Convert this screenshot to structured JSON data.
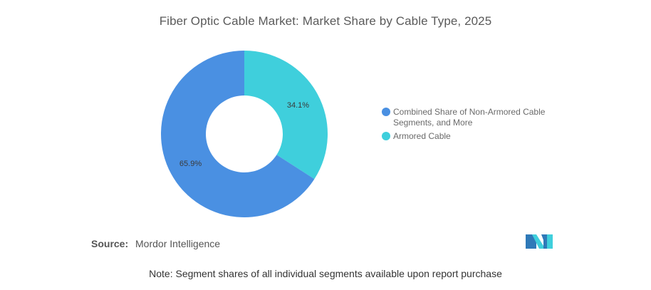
{
  "chart_data": {
    "type": "pie",
    "donut": true,
    "title": "Fiber Optic Cable Market: Market Share by Cable Type, 2025",
    "slices": [
      {
        "label": "Combined Share of Non-Armored Cable Segments, and More",
        "value": 65.9,
        "display": "65.9%",
        "color": "#4a90e2"
      },
      {
        "label": "Armored Cable",
        "value": 34.1,
        "display": "34.1%",
        "color": "#3fcfdc"
      }
    ],
    "legend_position": "right"
  },
  "legend": {
    "items": [
      {
        "label": "Combined Share of Non-Armored Cable Segments, and More",
        "color": "#4a90e2"
      },
      {
        "label": "Armored Cable",
        "color": "#3fcfdc"
      }
    ]
  },
  "source": {
    "label": "Source:",
    "value": "Mordor Intelligence"
  },
  "logo": {
    "icon": "mordor-intelligence-logo"
  },
  "note": "Note: Segment shares of all individual segments available upon report purchase"
}
